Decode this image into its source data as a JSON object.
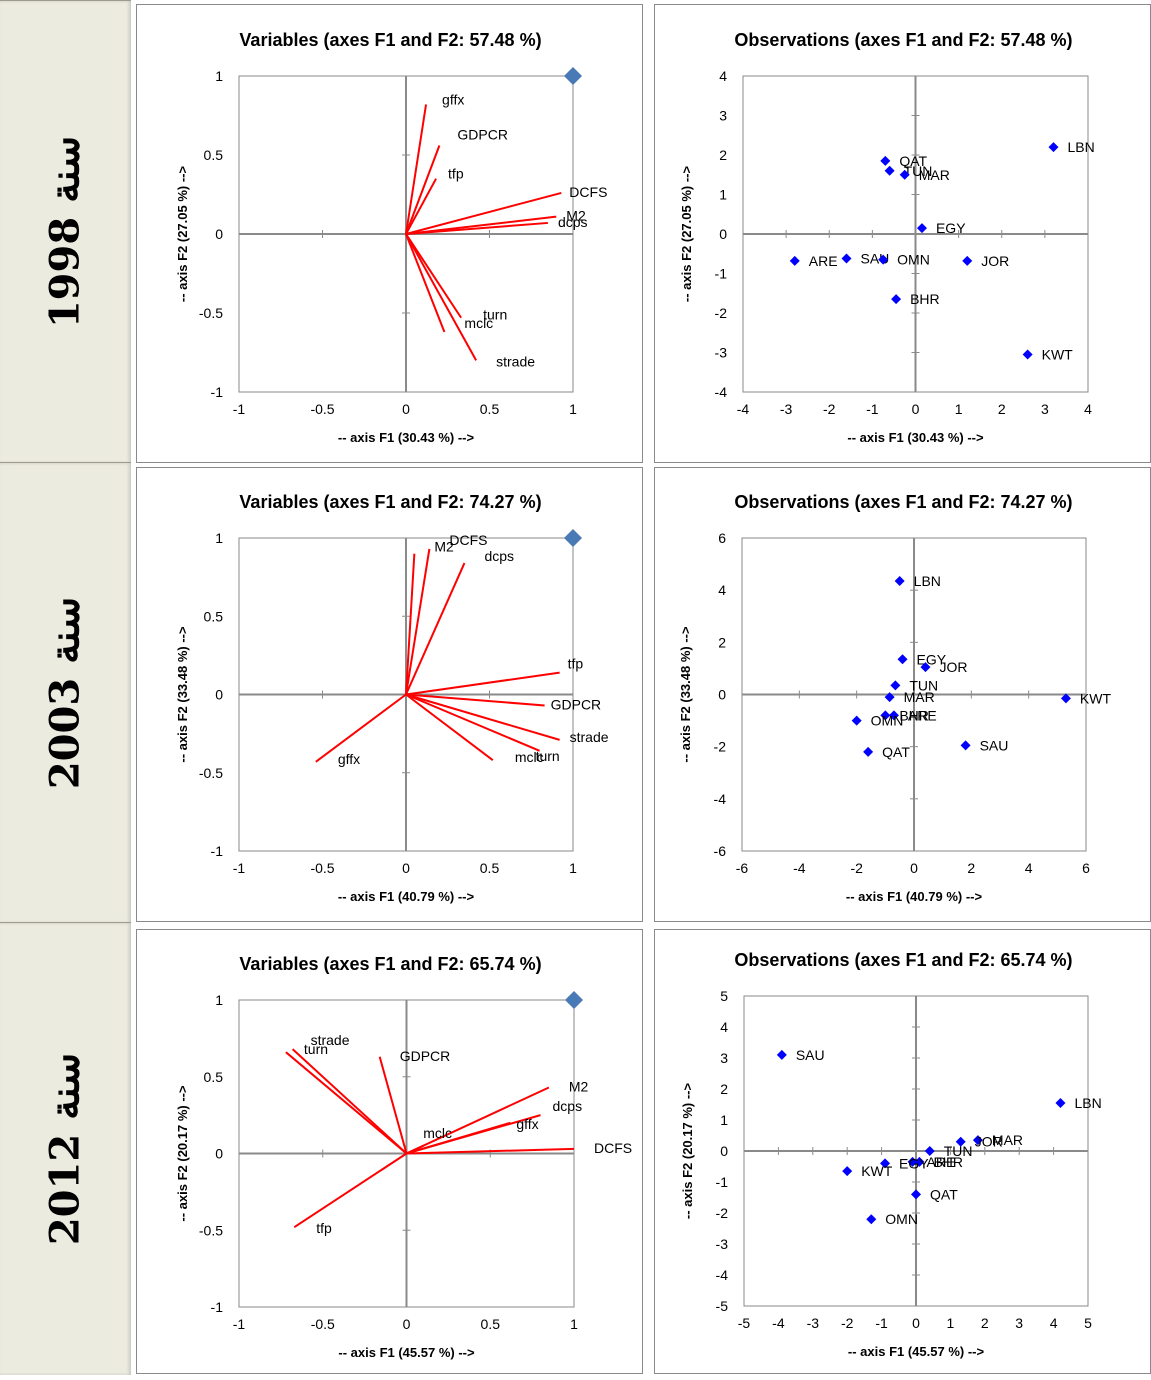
{
  "row_labels": [
    "سنة 1998",
    "سنة 2003",
    "سنة 2012"
  ],
  "chart_data": [
    {
      "type": "vector-biplot",
      "title": "Variables (axes F1 and F2: 57.48 %)",
      "xlabel": "-- axis F1 (30.43 %) -->",
      "ylabel": "-- axis F2 (27.05 %) -->",
      "xlim": [
        -1,
        1
      ],
      "ylim": [
        -1,
        1
      ],
      "xticks": [
        "-1",
        "-0.5",
        "0",
        "0.5",
        "1"
      ],
      "yticks": [
        "-1",
        "-0.5",
        "0",
        "0.5",
        "1"
      ],
      "marker": {
        "x": 1,
        "y": 1
      },
      "vectors": [
        {
          "label": "gffx",
          "x": 0.12,
          "y": 0.82
        },
        {
          "label": "GDPCR",
          "x": 0.2,
          "y": 0.56
        },
        {
          "label": "tfp",
          "x": 0.18,
          "y": 0.35
        },
        {
          "label": "DCFS",
          "x": 0.93,
          "y": 0.26
        },
        {
          "label": "M2",
          "x": 0.9,
          "y": 0.11
        },
        {
          "label": "dcps",
          "x": 0.85,
          "y": 0.07
        },
        {
          "label": "turn",
          "x": 0.33,
          "y": -0.53
        },
        {
          "label": "mclc",
          "x": 0.23,
          "y": -0.62
        },
        {
          "label": "strade",
          "x": 0.42,
          "y": -0.8
        }
      ]
    },
    {
      "type": "scatter",
      "title": "Observations (axes F1 and F2: 57.48 %)",
      "xlabel": "-- axis F1 (30.43 %) -->",
      "ylabel": "-- axis F2 (27.05 %) -->",
      "xlim": [
        -4,
        4
      ],
      "ylim": [
        -4,
        4
      ],
      "xticks": [
        "-4",
        "-3",
        "-2",
        "-1",
        "0",
        "1",
        "2",
        "3",
        "4"
      ],
      "yticks": [
        "-4",
        "-3",
        "-2",
        "-1",
        "0",
        "1",
        "2",
        "3",
        "4"
      ],
      "points": [
        {
          "label": "LBN",
          "x": 3.2,
          "y": 2.2
        },
        {
          "label": "QAT",
          "x": -0.7,
          "y": 1.85
        },
        {
          "label": "TUN",
          "x": -0.6,
          "y": 1.6
        },
        {
          "label": "MAR",
          "x": -0.25,
          "y": 1.5
        },
        {
          "label": "EGY",
          "x": 0.15,
          "y": 0.15
        },
        {
          "label": "ARE",
          "x": -2.8,
          "y": -0.68
        },
        {
          "label": "SAU",
          "x": -1.6,
          "y": -0.62
        },
        {
          "label": "OMN",
          "x": -0.75,
          "y": -0.65
        },
        {
          "label": "JOR",
          "x": 1.2,
          "y": -0.68
        },
        {
          "label": "BHR",
          "x": -0.45,
          "y": -1.65
        },
        {
          "label": "KWT",
          "x": 2.6,
          "y": -3.05
        }
      ]
    },
    {
      "type": "vector-biplot",
      "title": "Variables (axes F1 and F2: 74.27 %)",
      "xlabel": "-- axis F1 (40.79 %) -->",
      "ylabel": "-- axis F2 (33.48 %) -->",
      "xlim": [
        -1,
        1
      ],
      "ylim": [
        -1,
        1
      ],
      "xticks": [
        "-1",
        "-0.5",
        "0",
        "0.5",
        "1"
      ],
      "yticks": [
        "-1",
        "-0.5",
        "0",
        "0.5",
        "1"
      ],
      "marker": {
        "x": 1,
        "y": 1
      },
      "vectors": [
        {
          "label": "M2",
          "x": 0.05,
          "y": 0.9
        },
        {
          "label": "DCFS",
          "x": 0.14,
          "y": 0.93
        },
        {
          "label": "dcps",
          "x": 0.35,
          "y": 0.84
        },
        {
          "label": "tfp",
          "x": 0.92,
          "y": 0.14
        },
        {
          "label": "GDPCR",
          "x": 0.83,
          "y": -0.07
        },
        {
          "label": "strade",
          "x": 0.92,
          "y": -0.29
        },
        {
          "label": "turn",
          "x": 0.8,
          "y": -0.36
        },
        {
          "label": "mclc",
          "x": 0.52,
          "y": -0.42
        },
        {
          "label": "gffx",
          "x": -0.54,
          "y": -0.43
        }
      ]
    },
    {
      "type": "scatter",
      "title": "Observations (axes F1 and F2: 74.27 %)",
      "xlabel": "-- axis F1 (40.79 %) -->",
      "ylabel": "-- axis F2 (33.48 %) -->",
      "xlim": [
        -6,
        6
      ],
      "ylim": [
        -6,
        6
      ],
      "xticks": [
        "-6",
        "-4",
        "-2",
        "0",
        "2",
        "4",
        "6"
      ],
      "yticks": [
        "-6",
        "-4",
        "-2",
        "0",
        "2",
        "4",
        "6"
      ],
      "points": [
        {
          "label": "LBN",
          "x": -0.5,
          "y": 4.35
        },
        {
          "label": "EGY",
          "x": -0.4,
          "y": 1.35
        },
        {
          "label": "JOR",
          "x": 0.4,
          "y": 1.05
        },
        {
          "label": "TUN",
          "x": -0.65,
          "y": 0.35
        },
        {
          "label": "MAR",
          "x": -0.85,
          "y": -0.1
        },
        {
          "label": "BHR",
          "x": -1.0,
          "y": -0.8
        },
        {
          "label": "ARE",
          "x": -0.7,
          "y": -0.8
        },
        {
          "label": "OMN",
          "x": -2.0,
          "y": -1.0
        },
        {
          "label": "KWT",
          "x": 5.3,
          "y": -0.15
        },
        {
          "label": "SAU",
          "x": 1.8,
          "y": -1.95
        },
        {
          "label": "QAT",
          "x": -1.6,
          "y": -2.2
        }
      ]
    },
    {
      "type": "vector-biplot",
      "title": "Variables (axes F1 and F2: 65.74 %)",
      "xlabel": "-- axis F1 (45.57 %) -->",
      "ylabel": "-- axis F2 (20.17 %) -->",
      "xlim": [
        -1,
        1
      ],
      "ylim": [
        -1,
        1
      ],
      "xticks": [
        "-1",
        "-0.5",
        "0",
        "0.5",
        "1"
      ],
      "yticks": [
        "-1",
        "-0.5",
        "0",
        "0.5",
        "1"
      ],
      "marker": {
        "x": 1,
        "y": 1
      },
      "vectors": [
        {
          "label": "turn",
          "x": -0.72,
          "y": 0.66
        },
        {
          "label": "strade",
          "x": -0.68,
          "y": 0.68
        },
        {
          "label": "GDPCR",
          "x": -0.16,
          "y": 0.63
        },
        {
          "label": "M2",
          "x": 0.85,
          "y": 0.43
        },
        {
          "label": "dcps",
          "x": 0.8,
          "y": 0.25
        },
        {
          "label": "gffx",
          "x": 0.62,
          "y": 0.2
        },
        {
          "label": "mclc",
          "x": 0.1,
          "y": 0.05
        },
        {
          "label": "DCFS",
          "x": 1.0,
          "y": 0.03
        },
        {
          "label": "tfp",
          "x": -0.67,
          "y": -0.48
        }
      ]
    },
    {
      "type": "scatter",
      "title": "Observations (axes F1 and F2: 65.74 %)",
      "xlabel": "-- axis F1 (45.57 %) -->",
      "ylabel": "-- axis F2 (20.17 %) -->",
      "xlim": [
        -5,
        5
      ],
      "ylim": [
        -5,
        5
      ],
      "xticks": [
        "-5",
        "-4",
        "-3",
        "-2",
        "-1",
        "0",
        "1",
        "2",
        "3",
        "4",
        "5"
      ],
      "yticks": [
        "-5",
        "-4",
        "-3",
        "-2",
        "-1",
        "0",
        "1",
        "2",
        "3",
        "4",
        "5"
      ],
      "points": [
        {
          "label": "SAU",
          "x": -3.9,
          "y": 3.1
        },
        {
          "label": "LBN",
          "x": 4.2,
          "y": 1.55
        },
        {
          "label": "MAR",
          "x": 1.8,
          "y": 0.35
        },
        {
          "label": "JOR",
          "x": 1.3,
          "y": 0.3
        },
        {
          "label": "TUN",
          "x": 0.4,
          "y": 0.0
        },
        {
          "label": "BHR",
          "x": 0.1,
          "y": -0.35
        },
        {
          "label": "ARE",
          "x": -0.1,
          "y": -0.35
        },
        {
          "label": "EGY",
          "x": -0.9,
          "y": -0.4
        },
        {
          "label": "KWT",
          "x": -2.0,
          "y": -0.65
        },
        {
          "label": "QAT",
          "x": 0.0,
          "y": -1.4
        },
        {
          "label": "OMN",
          "x": -1.3,
          "y": -2.2
        }
      ]
    }
  ]
}
